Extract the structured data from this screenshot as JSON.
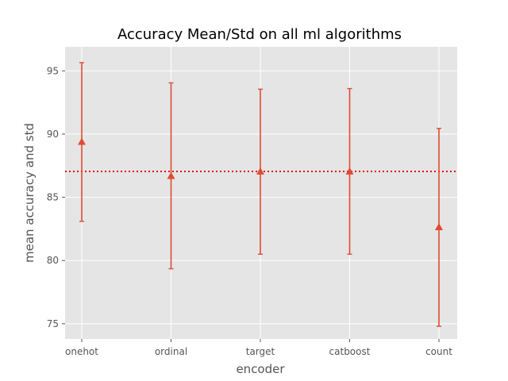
{
  "chart_data": {
    "type": "scatter",
    "title": "Accuracy Mean/Std on all ml algorithms",
    "xlabel": "encoder",
    "ylabel": "mean accuracy and std",
    "categories": [
      "onehot",
      "ordinal",
      "target",
      "catboost",
      "count"
    ],
    "series": [
      {
        "values": [
          89.4,
          86.7,
          87.05,
          87.05,
          82.65
        ],
        "error_low": [
          83.1,
          79.35,
          80.5,
          80.5,
          74.8
        ],
        "error_high": [
          95.65,
          94.05,
          93.55,
          93.6,
          90.45
        ],
        "marker": "triangle-up",
        "color": "#E24A33"
      }
    ],
    "reference_line": {
      "y": 87.05,
      "style": "dotted",
      "color": "#E00000"
    },
    "ylim": [
      73.8,
      96.9
    ],
    "yticks": [
      75,
      80,
      85,
      90,
      95
    ],
    "grid": true,
    "background": "#E5E5E5"
  }
}
